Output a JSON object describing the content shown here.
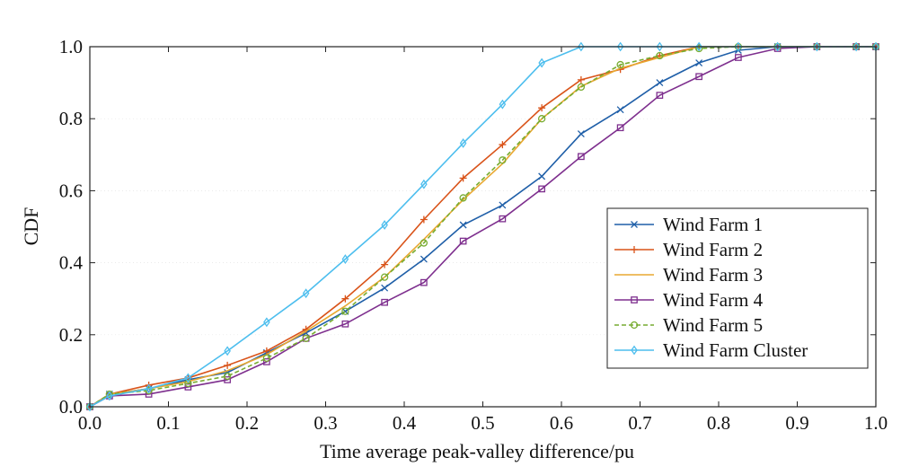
{
  "chart_data": {
    "type": "line",
    "title": "",
    "xlabel": "Time average peak-valley difference/pu",
    "ylabel": "CDF",
    "xlim": [
      0,
      1
    ],
    "ylim": [
      0,
      1
    ],
    "xticks": [
      "0.0",
      "0.1",
      "0.2",
      "0.3",
      "0.4",
      "0.5",
      "0.6",
      "0.7",
      "0.8",
      "0.9",
      "1.0"
    ],
    "yticks": [
      "0.0",
      "0.2",
      "0.4",
      "0.6",
      "0.8",
      "1.0"
    ],
    "legend_position": "right",
    "x": [
      0,
      0.025,
      0.075,
      0.125,
      0.175,
      0.225,
      0.275,
      0.325,
      0.375,
      0.425,
      0.475,
      0.525,
      0.575,
      0.625,
      0.675,
      0.725,
      0.775,
      0.825,
      0.875,
      0.925,
      0.975,
      1.0
    ],
    "series": [
      {
        "name": "Wind Farm 1",
        "color": "#1f5fa8",
        "marker": "x",
        "dash": false,
        "values": [
          0,
          0.035,
          0.05,
          0.075,
          0.095,
          0.15,
          0.205,
          0.265,
          0.33,
          0.41,
          0.505,
          0.56,
          0.64,
          0.758,
          0.825,
          0.9,
          0.955,
          0.99,
          1.0,
          1.0,
          1.0,
          1.0
        ]
      },
      {
        "name": "Wind Farm 2",
        "color": "#d95319",
        "marker": "plus",
        "dash": false,
        "values": [
          0,
          0.035,
          0.06,
          0.08,
          0.115,
          0.155,
          0.215,
          0.3,
          0.395,
          0.52,
          0.635,
          0.728,
          0.83,
          0.908,
          0.937,
          0.975,
          1.0,
          1.0,
          1.0,
          1.0,
          1.0,
          1.0
        ]
      },
      {
        "name": "Wind Farm 3",
        "color": "#e8a830",
        "marker": "none",
        "dash": false,
        "values": [
          0,
          0.035,
          0.05,
          0.07,
          0.1,
          0.145,
          0.21,
          0.28,
          0.36,
          0.465,
          0.575,
          0.675,
          0.8,
          0.89,
          0.94,
          0.97,
          1.0,
          1.0,
          1.0,
          1.0,
          1.0,
          1.0
        ]
      },
      {
        "name": "Wind Farm 4",
        "color": "#7e2f8e",
        "marker": "square",
        "dash": false,
        "values": [
          0,
          0.03,
          0.035,
          0.055,
          0.075,
          0.125,
          0.19,
          0.23,
          0.29,
          0.345,
          0.46,
          0.522,
          0.605,
          0.695,
          0.775,
          0.865,
          0.917,
          0.97,
          0.995,
          1.0,
          1.0,
          1.0
        ]
      },
      {
        "name": "Wind Farm 5",
        "color": "#77ac30",
        "marker": "circle",
        "dash": true,
        "values": [
          0,
          0.035,
          0.045,
          0.065,
          0.085,
          0.135,
          0.19,
          0.265,
          0.36,
          0.455,
          0.58,
          0.685,
          0.8,
          0.888,
          0.95,
          0.975,
          0.995,
          1.0,
          1.0,
          1.0,
          1.0,
          1.0
        ]
      },
      {
        "name": "Wind Farm Cluster",
        "color": "#4dbeee",
        "marker": "diamond",
        "dash": false,
        "values": [
          0,
          0.03,
          0.05,
          0.08,
          0.155,
          0.235,
          0.315,
          0.41,
          0.505,
          0.618,
          0.732,
          0.84,
          0.955,
          1.0,
          1.0,
          1.0,
          1.0,
          1.0,
          1.0,
          1.0,
          1.0,
          1.0
        ]
      }
    ]
  }
}
